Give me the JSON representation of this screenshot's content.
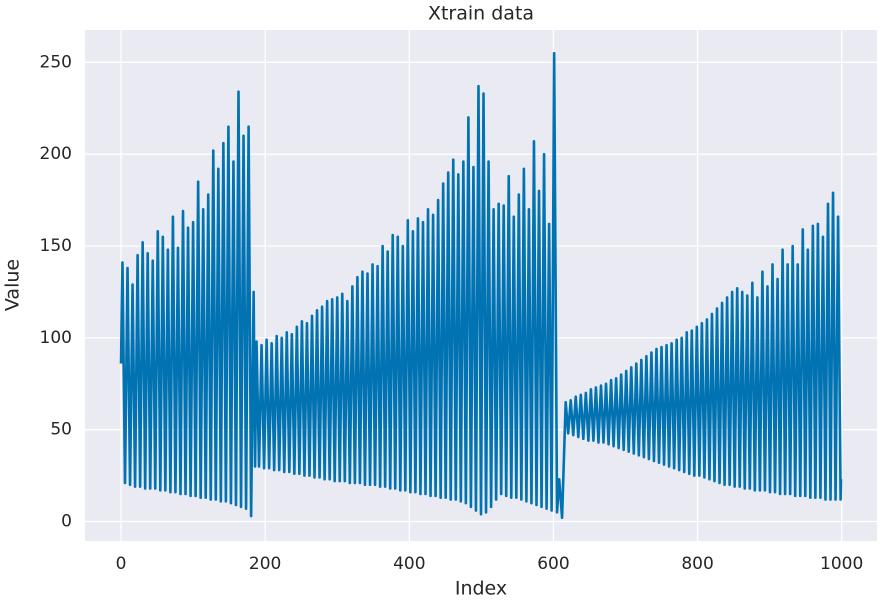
{
  "chart_data": {
    "type": "line",
    "title": "Xtrain data",
    "x_label": "Index",
    "y_label": "Value",
    "color": "#0173b2",
    "grid": true,
    "xlim": [
      -50,
      1049
    ],
    "ylim": [
      -10.6,
      267.6
    ],
    "xticks": [
      0,
      200,
      400,
      600,
      800,
      1000
    ],
    "yticks": [
      0,
      50,
      100,
      150,
      200,
      250
    ],
    "x": [
      0,
      2,
      5.5,
      9,
      12.5,
      16,
      19.5,
      23,
      26.5,
      30,
      33.5,
      37,
      40.5,
      44,
      47.5,
      51,
      54.5,
      58,
      61.5,
      65,
      68.5,
      72,
      75.5,
      79,
      82.5,
      86,
      89.5,
      93,
      96.5,
      100,
      103.5,
      107,
      110.5,
      114,
      117.5,
      121,
      124.5,
      128,
      131.5,
      135,
      138.5,
      142,
      145.5,
      149,
      152.5,
      156,
      159.5,
      163,
      166.5,
      170,
      173.5,
      177,
      180.5,
      184,
      186,
      188,
      191.5,
      195,
      198.5,
      202,
      205.5,
      209,
      212.5,
      216,
      219.5,
      223,
      226.5,
      230,
      233.5,
      237,
      240.5,
      244,
      247.5,
      251,
      254.5,
      258,
      261.5,
      265,
      268.5,
      272,
      275.5,
      279,
      282.5,
      286,
      289.5,
      293,
      296.5,
      300,
      303.5,
      307,
      310.5,
      314,
      317.5,
      321,
      324.5,
      328,
      331.5,
      335,
      338.5,
      342,
      345.5,
      349,
      352.5,
      356,
      359.5,
      363,
      366.5,
      370,
      373.5,
      377,
      380.5,
      384,
      387.5,
      391,
      394.5,
      398,
      401.5,
      405,
      408.5,
      412,
      415.5,
      419,
      422.5,
      426,
      429.5,
      433,
      436.5,
      440,
      443.5,
      447,
      450.5,
      454,
      457.5,
      461,
      464.5,
      468,
      471.5,
      475,
      478.5,
      482,
      485.5,
      489,
      492.5,
      496,
      499.5,
      503,
      506.5,
      510,
      513.5,
      517,
      520.5,
      524,
      527.5,
      531,
      534.5,
      538,
      541.5,
      545,
      548.5,
      552,
      555.5,
      559,
      562.5,
      566,
      569.5,
      573,
      576.5,
      580,
      583.5,
      587,
      590.5,
      594,
      597.5,
      601,
      605,
      608,
      612,
      617,
      620.5,
      624,
      627.5,
      631,
      634.5,
      638,
      641.5,
      645,
      648.5,
      652,
      655.5,
      659,
      662.5,
      666,
      669.5,
      673,
      676.5,
      680,
      683.5,
      687,
      690.5,
      694,
      697.5,
      701,
      704.5,
      708,
      711.5,
      715,
      718.5,
      722,
      725.5,
      729,
      732.5,
      736,
      739.5,
      743,
      746.5,
      750,
      753.5,
      757,
      760.5,
      764,
      767.5,
      771,
      774.5,
      778,
      781.5,
      785,
      788.5,
      792,
      795.5,
      799,
      802.5,
      806,
      809.5,
      813,
      816.5,
      820,
      823.5,
      827,
      830.5,
      834,
      837.5,
      841,
      844.5,
      848,
      851.5,
      855,
      858.5,
      862,
      865.5,
      869,
      872.5,
      876,
      879.5,
      883,
      886.5,
      890,
      893.5,
      897,
      900.5,
      904,
      907.5,
      911,
      914.5,
      918,
      921.5,
      925,
      928.5,
      932,
      935.5,
      939,
      942.5,
      946,
      949.5,
      953,
      956.5,
      960,
      963.5,
      967,
      970.5,
      974,
      977.5,
      981,
      984.5,
      988,
      991.5,
      995,
      998.5,
      999
    ],
    "values": [
      86,
      141,
      21,
      138,
      20,
      129,
      19,
      145,
      19,
      152,
      18,
      146,
      18,
      142,
      18,
      158,
      17,
      155,
      17,
      148,
      16,
      166,
      16,
      149,
      15,
      169,
      15,
      160,
      14,
      163,
      14,
      185,
      13,
      170,
      13,
      178,
      12,
      202,
      12,
      192,
      11,
      206,
      11,
      215,
      10,
      196,
      9,
      234,
      8,
      210,
      7,
      215,
      3,
      125,
      30,
      98,
      30,
      96,
      29,
      99,
      29,
      97,
      28,
      101,
      28,
      100,
      27,
      103,
      27,
      102,
      26,
      106,
      26,
      109,
      25,
      108,
      25,
      112,
      24,
      115,
      24,
      117,
      23,
      120,
      23,
      121,
      22,
      122,
      22,
      124,
      22,
      120,
      21,
      128,
      21,
      133,
      21,
      136,
      20,
      135,
      20,
      140,
      20,
      139,
      19,
      150,
      19,
      147,
      18,
      156,
      18,
      155,
      17,
      150,
      17,
      164,
      16,
      158,
      16,
      165,
      15,
      163,
      15,
      170,
      14,
      167,
      14,
      175,
      13,
      184,
      13,
      190,
      12,
      197,
      12,
      189,
      11,
      196,
      10,
      220,
      8,
      193,
      6,
      237,
      4,
      233,
      5,
      196,
      8,
      170,
      12,
      173,
      15,
      172,
      14,
      188,
      13,
      166,
      13,
      178,
      12,
      192,
      11,
      170,
      10,
      207,
      9,
      180,
      8,
      200,
      7,
      162,
      6,
      255,
      5,
      23,
      2,
      65,
      48,
      66,
      47,
      68,
      46,
      69,
      45,
      70,
      44,
      72,
      44,
      73,
      43,
      74,
      43,
      75,
      42,
      77,
      41,
      78,
      40,
      80,
      39,
      82,
      38,
      84,
      37,
      86,
      36,
      88,
      35,
      90,
      34,
      92,
      33,
      94,
      32,
      95,
      31,
      96,
      30,
      97,
      29,
      99,
      28,
      100,
      27,
      103,
      26,
      104,
      25,
      106,
      25,
      108,
      24,
      110,
      23,
      113,
      22,
      116,
      21,
      119,
      20,
      122,
      20,
      125,
      19,
      127,
      19,
      125,
      18,
      123,
      18,
      130,
      17,
      122,
      17,
      136,
      17,
      128,
      16,
      140,
      16,
      132,
      15,
      148,
      15,
      140,
      15,
      150,
      14,
      140,
      14,
      159,
      14,
      148,
      13,
      161,
      13,
      162,
      13,
      155,
      12,
      173,
      12,
      179,
      12,
      166,
      12,
      23
    ]
  }
}
